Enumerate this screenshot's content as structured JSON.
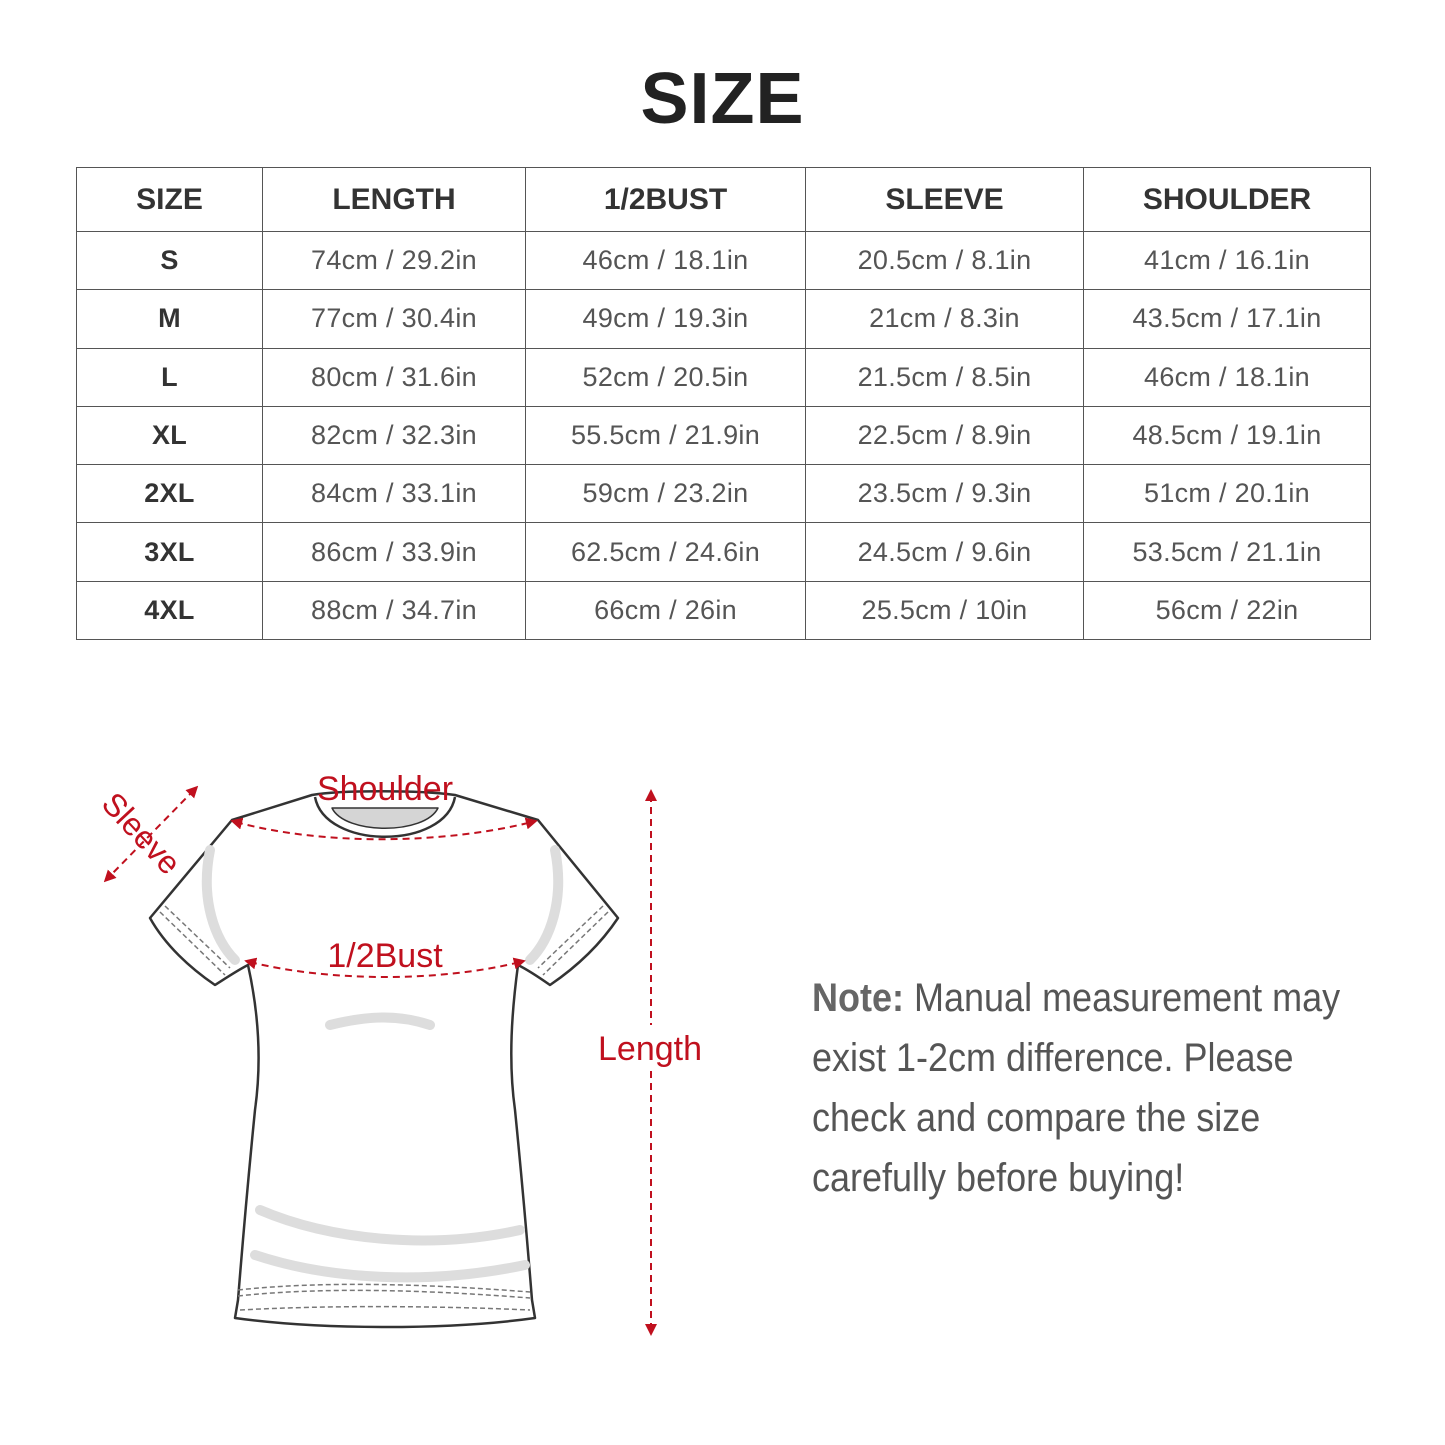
{
  "title": "SIZE",
  "table": {
    "headers": [
      "SIZE",
      "LENGTH",
      "1/2BUST",
      "SLEEVE",
      "SHOULDER"
    ],
    "rows": [
      [
        "S",
        "74cm / 29.2in",
        "46cm / 18.1in",
        "20.5cm / 8.1in",
        "41cm / 16.1in"
      ],
      [
        "M",
        "77cm / 30.4in",
        "49cm / 19.3in",
        "21cm / 8.3in",
        "43.5cm / 17.1in"
      ],
      [
        "L",
        "80cm / 31.6in",
        "52cm / 20.5in",
        "21.5cm / 8.5in",
        "46cm / 18.1in"
      ],
      [
        "XL",
        "82cm / 32.3in",
        "55.5cm / 21.9in",
        "22.5cm / 8.9in",
        "48.5cm / 19.1in"
      ],
      [
        "2XL",
        "84cm / 33.1in",
        "59cm / 23.2in",
        "23.5cm / 9.3in",
        "51cm / 20.1in"
      ],
      [
        "3XL",
        "86cm / 33.9in",
        "62.5cm / 24.6in",
        "24.5cm / 9.6in",
        "53.5cm / 21.1in"
      ],
      [
        "4XL",
        "88cm / 34.7in",
        "66cm / 26in",
        "25.5cm / 10in",
        "56cm / 22in"
      ]
    ]
  },
  "diagram": {
    "labels": {
      "shoulder": "Shoulder",
      "sleeve": "Sleeve",
      "bust": "1/2Bust",
      "length": "Length"
    },
    "accent_color": "#c0101e"
  },
  "note": {
    "label": "Note:",
    "text": " Manual measurement may exist 1-2cm difference. Please check and compare the size carefully before buying!"
  }
}
